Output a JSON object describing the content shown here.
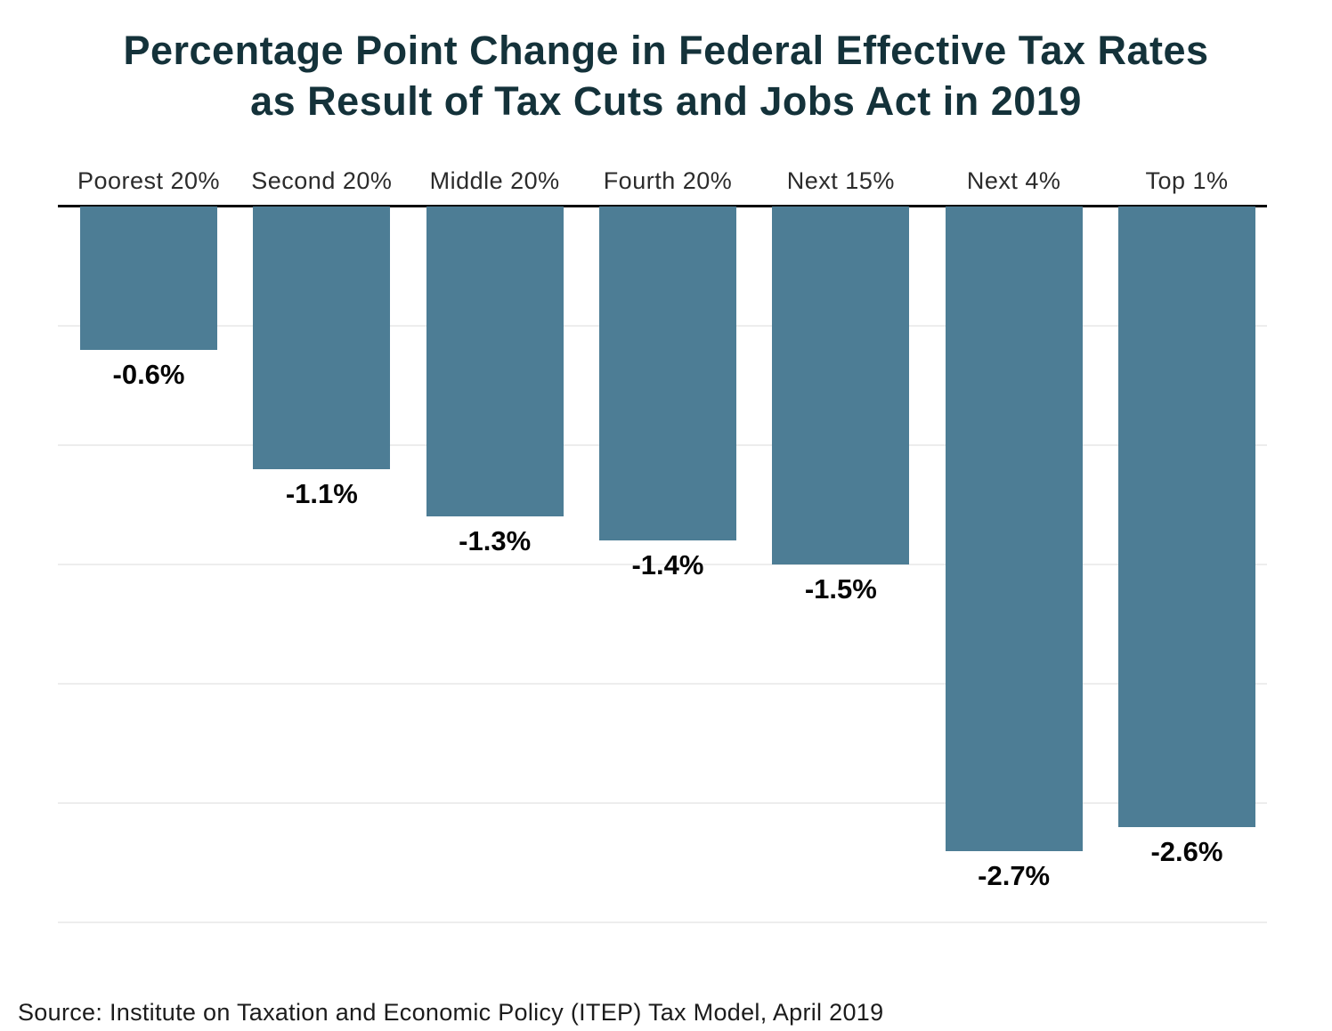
{
  "title": {
    "line1": "Percentage Point Change in Federal Effective Tax Rates",
    "line2": "as Result of Tax Cuts and Jobs Act in 2019"
  },
  "source": "Source: Institute on Taxation and Economic Policy (ITEP) Tax Model, April 2019",
  "colors": {
    "bar": "#4d7d95",
    "title": "#14323a",
    "axis": "#0c0c0c",
    "gridline": "#ededed",
    "category_label": "#2b2b2b",
    "value_label": "#050505"
  },
  "chart_data": {
    "type": "bar",
    "title": "Percentage Point Change in Federal Effective Tax Rates as Result of Tax Cuts and Jobs Act in 2019",
    "categories": [
      "Poorest 20%",
      "Second 20%",
      "Middle 20%",
      "Fourth 20%",
      "Next 15%",
      "Next 4%",
      "Top 1%"
    ],
    "values": [
      -0.6,
      -1.1,
      -1.3,
      -1.4,
      -1.5,
      -2.7,
      -2.6
    ],
    "value_labels": [
      "-0.6%",
      "-1.1%",
      "-1.3%",
      "-1.4%",
      "-1.5%",
      "-2.7%",
      "-2.6%"
    ],
    "xlabel": "",
    "ylabel": "",
    "ylim": [
      -3.0,
      0
    ],
    "gridline_step": 0.5,
    "grid": true,
    "legend": false,
    "bar_labels_position": "below-bar",
    "category_labels_position": "above-axis"
  }
}
